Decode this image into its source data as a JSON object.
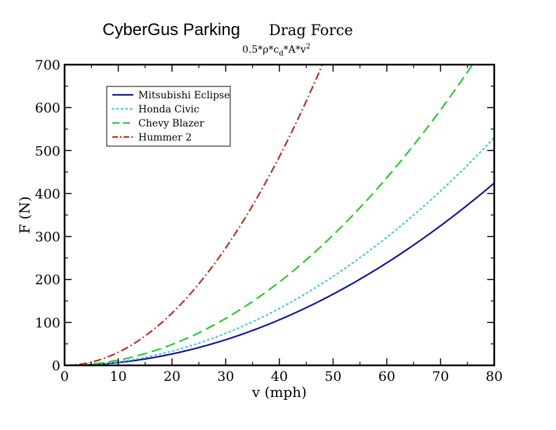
{
  "header": {
    "brand": "CyberGus Parking",
    "title": "Drag Force",
    "formula": {
      "base": "0.5*ρ*c",
      "sub": "d",
      "mid": "*A*v",
      "sup": "2"
    }
  },
  "chart_data": {
    "type": "line",
    "xlabel": "v (mph)",
    "ylabel": "F (N)",
    "xlim": [
      0,
      80
    ],
    "ylim": [
      0,
      700
    ],
    "xticks": [
      0,
      10,
      20,
      30,
      40,
      50,
      60,
      70,
      80
    ],
    "yticks": [
      0,
      100,
      200,
      300,
      400,
      500,
      600,
      700
    ],
    "grid": false,
    "legend_position": "top-left",
    "series": [
      {
        "name": "Mitsubishi Eclipse",
        "color": "#1010a0",
        "style": "solid",
        "x": [
          0,
          10,
          20,
          30,
          40,
          50,
          60,
          70,
          80
        ],
        "y": [
          0,
          6.6,
          26.5,
          59.6,
          106,
          166,
          239,
          325,
          424
        ]
      },
      {
        "name": "Honda Civic",
        "color": "#4fc8e0",
        "style": "dotted",
        "x": [
          0,
          10,
          20,
          30,
          40,
          50,
          60,
          70,
          80
        ],
        "y": [
          0,
          8.3,
          33.1,
          74.5,
          132,
          207,
          298,
          406,
          530
        ]
      },
      {
        "name": "Chevy Blazer",
        "color": "#22cc22",
        "style": "dashed",
        "x": [
          0,
          10,
          20,
          30,
          40,
          50,
          60,
          70,
          76
        ],
        "y": [
          0,
          12.2,
          48.6,
          109,
          194,
          304,
          437,
          595,
          700
        ]
      },
      {
        "name": "Hummer 2",
        "color": "#c0281e",
        "style": "dashdot",
        "x": [
          0,
          10,
          20,
          30,
          40,
          48
        ],
        "y": [
          0,
          30.4,
          121.5,
          273,
          486,
          700
        ]
      }
    ]
  }
}
